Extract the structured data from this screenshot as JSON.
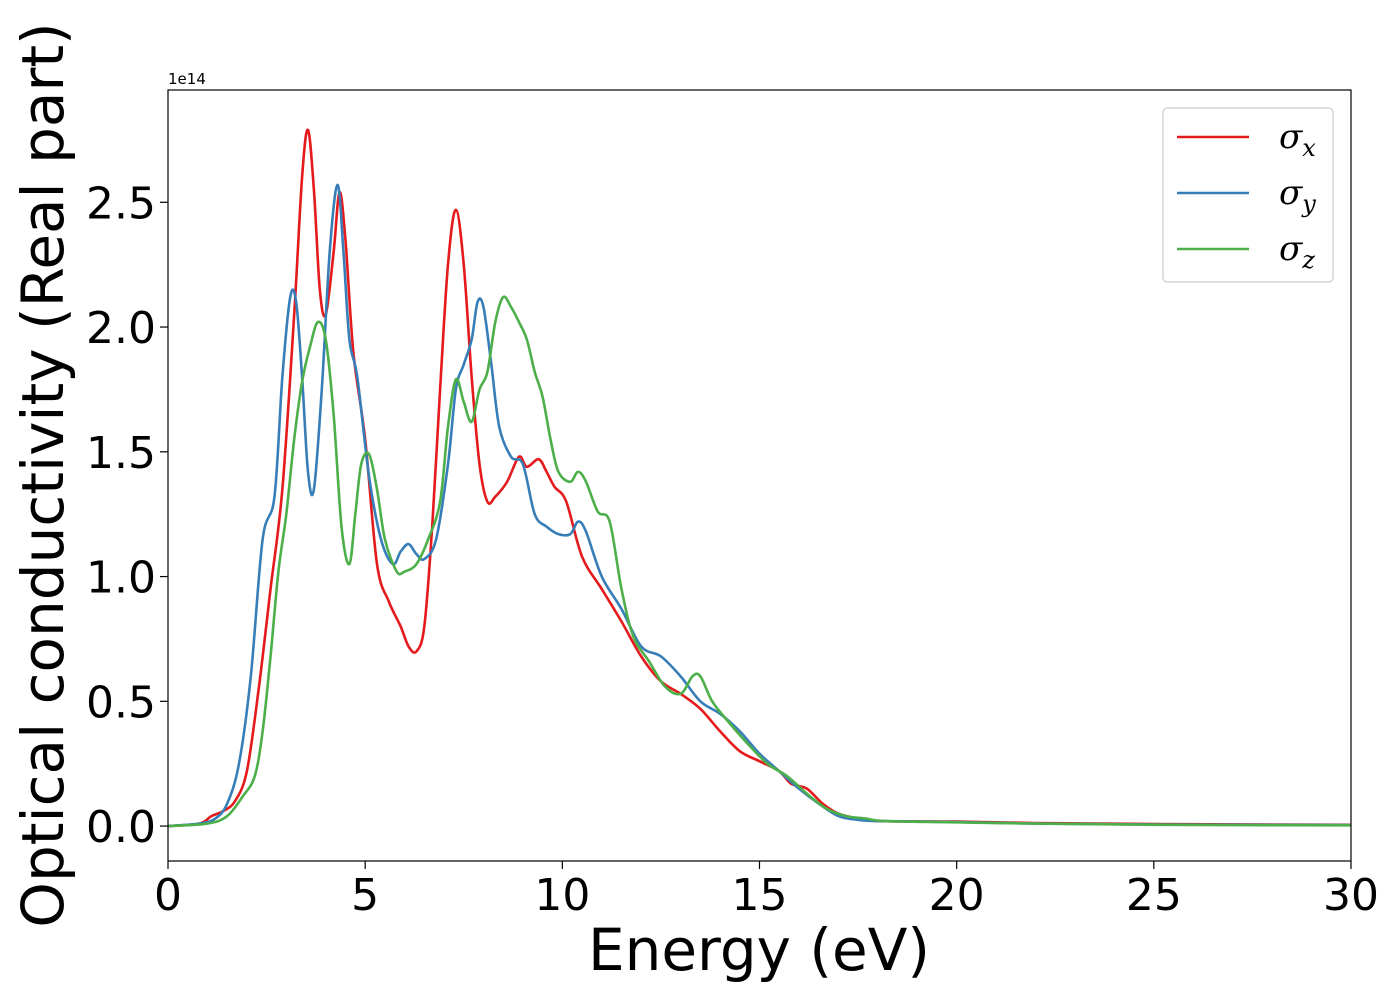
{
  "chart_data": {
    "type": "line",
    "xlabel": "Energy (eV)",
    "ylabel": "Optical conductivity (Real part)",
    "y_offset_label": "1e14",
    "y_scale": 100000000000000.0,
    "xlim": [
      0,
      30
    ],
    "ylim": [
      -0.14,
      2.95
    ],
    "x_ticks": [
      0,
      5,
      10,
      15,
      20,
      25,
      30
    ],
    "x_tick_labels": [
      "0",
      "5",
      "10",
      "15",
      "20",
      "25",
      "30"
    ],
    "y_ticks": [
      0.0,
      0.5,
      1.0,
      1.5,
      2.0,
      2.5
    ],
    "y_tick_labels": [
      "0.0",
      "0.5",
      "1.0",
      "1.5",
      "2.0",
      "2.5"
    ],
    "grid": false,
    "legend_position": "top-right",
    "series": [
      {
        "name": "σx",
        "symbol": "σ",
        "subscript": "x",
        "color": "#e41a1c",
        "x": [
          0,
          0.8,
          1.1,
          1.4,
          1.7,
          2.0,
          2.3,
          2.6,
          2.9,
          3.2,
          3.4,
          3.55,
          3.7,
          3.85,
          4.0,
          4.2,
          4.35,
          4.5,
          4.7,
          5.0,
          5.3,
          5.6,
          5.9,
          6.1,
          6.3,
          6.5,
          6.7,
          6.9,
          7.1,
          7.3,
          7.5,
          7.7,
          7.9,
          8.1,
          8.3,
          8.6,
          8.9,
          9.1,
          9.4,
          9.6,
          9.8,
          10.1,
          10.5,
          11.0,
          11.5,
          12.0,
          12.5,
          13.0,
          13.5,
          14.0,
          14.5,
          15.0,
          15.5,
          15.8,
          16.2,
          16.6,
          17.0,
          17.5,
          18.0,
          20.0,
          22.0,
          25.0,
          30.0
        ],
        "values": [
          0.0,
          0.01,
          0.04,
          0.06,
          0.1,
          0.22,
          0.55,
          0.95,
          1.35,
          2.05,
          2.6,
          2.79,
          2.55,
          2.15,
          2.05,
          2.3,
          2.54,
          2.35,
          1.9,
          1.55,
          1.05,
          0.9,
          0.8,
          0.72,
          0.7,
          0.8,
          1.2,
          1.75,
          2.25,
          2.47,
          2.25,
          1.8,
          1.45,
          1.3,
          1.32,
          1.38,
          1.48,
          1.44,
          1.47,
          1.42,
          1.36,
          1.3,
          1.08,
          0.95,
          0.82,
          0.68,
          0.58,
          0.53,
          0.47,
          0.38,
          0.3,
          0.26,
          0.22,
          0.17,
          0.15,
          0.09,
          0.05,
          0.03,
          0.02,
          0.018,
          0.012,
          0.008,
          0.005
        ]
      },
      {
        "name": "σy",
        "symbol": "σ",
        "subscript": "y",
        "color": "#377eb8",
        "x": [
          0,
          0.8,
          1.2,
          1.5,
          1.8,
          2.1,
          2.4,
          2.7,
          2.9,
          3.1,
          3.25,
          3.4,
          3.55,
          3.7,
          3.9,
          4.1,
          4.3,
          4.45,
          4.6,
          4.8,
          5.1,
          5.4,
          5.7,
          5.9,
          6.1,
          6.3,
          6.5,
          6.8,
          7.1,
          7.3,
          7.5,
          7.7,
          7.85,
          8.0,
          8.2,
          8.4,
          8.7,
          9.0,
          9.3,
          9.6,
          9.9,
          10.2,
          10.4,
          10.6,
          11.0,
          11.5,
          12.0,
          12.5,
          13.0,
          13.5,
          14.0,
          14.5,
          15.0,
          15.5,
          16.0,
          16.5,
          17.0,
          17.5,
          18.0,
          20.0,
          22.0,
          25.0,
          30.0
        ],
        "values": [
          0.0,
          0.01,
          0.03,
          0.09,
          0.25,
          0.6,
          1.15,
          1.32,
          1.8,
          2.12,
          2.1,
          1.8,
          1.42,
          1.35,
          1.75,
          2.3,
          2.57,
          2.3,
          1.95,
          1.8,
          1.4,
          1.15,
          1.05,
          1.1,
          1.13,
          1.09,
          1.07,
          1.15,
          1.45,
          1.75,
          1.85,
          1.95,
          2.1,
          2.08,
          1.85,
          1.6,
          1.48,
          1.45,
          1.25,
          1.2,
          1.17,
          1.17,
          1.22,
          1.18,
          1.0,
          0.87,
          0.72,
          0.68,
          0.6,
          0.5,
          0.45,
          0.38,
          0.29,
          0.22,
          0.15,
          0.09,
          0.04,
          0.025,
          0.02,
          0.016,
          0.01,
          0.006,
          0.004
        ]
      },
      {
        "name": "σz",
        "symbol": "σ",
        "subscript": "z",
        "color": "#4daf4a",
        "x": [
          0,
          1.0,
          1.5,
          1.9,
          2.2,
          2.4,
          2.6,
          2.8,
          3.0,
          3.2,
          3.4,
          3.6,
          3.8,
          4.0,
          4.2,
          4.4,
          4.6,
          4.75,
          4.9,
          5.1,
          5.3,
          5.5,
          5.8,
          6.0,
          6.3,
          6.6,
          6.9,
          7.1,
          7.3,
          7.5,
          7.7,
          7.9,
          8.1,
          8.3,
          8.5,
          8.7,
          8.9,
          9.1,
          9.3,
          9.5,
          9.7,
          9.9,
          10.2,
          10.4,
          10.6,
          10.9,
          11.2,
          11.5,
          11.8,
          12.2,
          12.6,
          13.0,
          13.3,
          13.5,
          13.8,
          14.2,
          14.7,
          15.2,
          15.7,
          16.2,
          16.7,
          17.2,
          17.7,
          18.2,
          20.0,
          22.0,
          25.0,
          30.0
        ],
        "values": [
          0.0,
          0.01,
          0.04,
          0.12,
          0.2,
          0.38,
          0.68,
          1.02,
          1.25,
          1.55,
          1.78,
          1.92,
          2.02,
          1.95,
          1.65,
          1.2,
          1.05,
          1.25,
          1.45,
          1.49,
          1.35,
          1.15,
          1.02,
          1.02,
          1.05,
          1.15,
          1.3,
          1.6,
          1.79,
          1.7,
          1.62,
          1.75,
          1.82,
          2.02,
          2.12,
          2.08,
          2.02,
          1.95,
          1.82,
          1.72,
          1.55,
          1.42,
          1.38,
          1.42,
          1.38,
          1.26,
          1.22,
          0.95,
          0.76,
          0.66,
          0.56,
          0.53,
          0.6,
          0.6,
          0.5,
          0.42,
          0.33,
          0.25,
          0.2,
          0.13,
          0.07,
          0.04,
          0.03,
          0.02,
          0.015,
          0.01,
          0.005,
          0.003
        ]
      }
    ]
  }
}
